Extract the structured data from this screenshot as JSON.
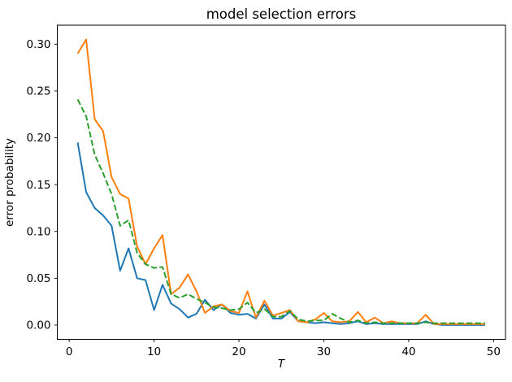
{
  "chart_data": {
    "type": "line",
    "title": "model selection errors",
    "xlabel": "T",
    "ylabel": "error probability",
    "x": [
      1,
      2,
      3,
      4,
      5,
      6,
      7,
      8,
      9,
      10,
      11,
      12,
      13,
      14,
      15,
      16,
      17,
      18,
      19,
      20,
      21,
      22,
      23,
      24,
      25,
      26,
      27,
      28,
      29,
      30,
      31,
      32,
      33,
      34,
      35,
      36,
      37,
      38,
      39,
      40,
      41,
      42,
      43,
      44,
      45,
      46,
      47,
      48,
      49
    ],
    "series": [
      {
        "name": "blue-solid",
        "color": "#1f77b4",
        "style": "solid",
        "values": [
          0.195,
          0.142,
          0.125,
          0.117,
          0.106,
          0.058,
          0.082,
          0.05,
          0.048,
          0.016,
          0.043,
          0.023,
          0.017,
          0.008,
          0.012,
          0.027,
          0.016,
          0.022,
          0.013,
          0.011,
          0.012,
          0.007,
          0.022,
          0.007,
          0.007,
          0.014,
          0.004,
          0.003,
          0.002,
          0.003,
          0.002,
          0.001,
          0.002,
          0.004,
          0.001,
          0.002,
          0.001,
          0.001,
          0.001,
          0.001,
          0.001,
          0.004,
          0.001,
          0.0,
          0.0,
          0.0,
          0.0,
          0.0,
          0.0
        ]
      },
      {
        "name": "orange-solid",
        "color": "#ff7f0e",
        "style": "solid",
        "values": [
          0.29,
          0.305,
          0.22,
          0.207,
          0.158,
          0.14,
          0.135,
          0.084,
          0.065,
          0.082,
          0.096,
          0.033,
          0.04,
          0.054,
          0.036,
          0.013,
          0.02,
          0.022,
          0.015,
          0.013,
          0.036,
          0.008,
          0.026,
          0.01,
          0.013,
          0.016,
          0.004,
          0.003,
          0.006,
          0.013,
          0.004,
          0.003,
          0.004,
          0.014,
          0.003,
          0.008,
          0.002,
          0.004,
          0.002,
          0.002,
          0.002,
          0.011,
          0.001,
          0.001,
          0.001,
          0.001,
          0.001,
          0.001,
          0.001
        ]
      },
      {
        "name": "green-dashed",
        "color": "#2ca02c",
        "style": "dashed",
        "values": [
          0.241,
          0.223,
          0.182,
          0.162,
          0.14,
          0.106,
          0.112,
          0.077,
          0.065,
          0.061,
          0.062,
          0.033,
          0.029,
          0.033,
          0.028,
          0.024,
          0.019,
          0.018,
          0.016,
          0.017,
          0.024,
          0.013,
          0.017,
          0.009,
          0.009,
          0.015,
          0.006,
          0.004,
          0.005,
          0.005,
          0.012,
          0.007,
          0.003,
          0.005,
          0.002,
          0.003,
          0.002,
          0.002,
          0.002,
          0.002,
          0.002,
          0.003,
          0.002,
          0.002,
          0.002,
          0.002,
          0.002,
          0.002,
          0.002
        ]
      }
    ],
    "xticks": [
      0,
      10,
      20,
      30,
      40,
      50
    ],
    "yticks": [
      "0.00",
      "0.05",
      "0.10",
      "0.15",
      "0.20",
      "0.25",
      "0.30"
    ],
    "xlim": [
      -1.4,
      51.4
    ],
    "ylim": [
      -0.01525,
      0.32025
    ],
    "grid": false,
    "legend": "none"
  }
}
